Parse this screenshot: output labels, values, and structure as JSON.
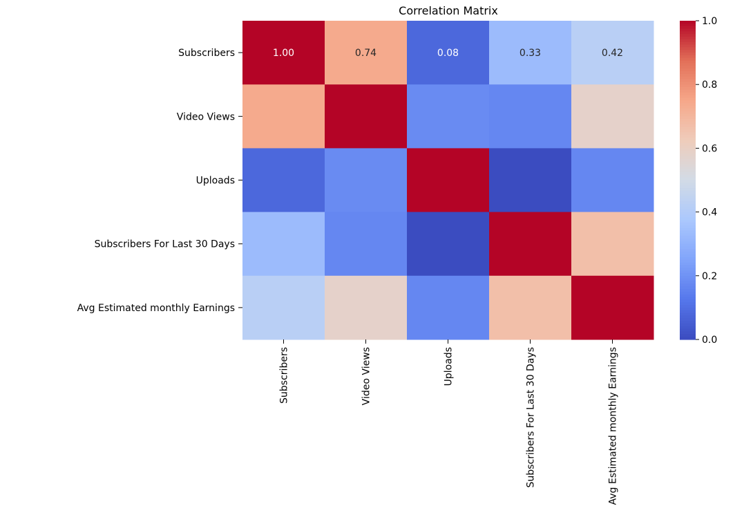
{
  "chart_data": {
    "type": "heatmap",
    "title": "Correlation Matrix",
    "x_labels": [
      "Subscribers",
      "Video Views",
      "Uploads",
      "Subscribers For Last 30 Days",
      "Avg Estimated monthly Earnings"
    ],
    "y_labels": [
      "Subscribers",
      "Video Views",
      "Uploads",
      "Subscribers For Last 30 Days",
      "Avg Estimated monthly Earnings"
    ],
    "values": [
      [
        1.0,
        0.74,
        0.08,
        0.33,
        0.42
      ],
      [
        0.74,
        1.0,
        0.18,
        0.17,
        0.58
      ],
      [
        0.08,
        0.18,
        1.0,
        0.0,
        0.17
      ],
      [
        0.33,
        0.17,
        0.0,
        1.0,
        0.67
      ],
      [
        0.42,
        0.58,
        0.17,
        0.67,
        1.0
      ]
    ],
    "annotated_row": 0,
    "value_format": "0.00",
    "colormap": "coolwarm",
    "color_range": [
      0.0,
      1.0
    ],
    "colorbar_ticks": [
      "0.0",
      "0.2",
      "0.4",
      "0.6",
      "0.8",
      "1.0"
    ],
    "grid": false,
    "legend_placement": "right"
  }
}
